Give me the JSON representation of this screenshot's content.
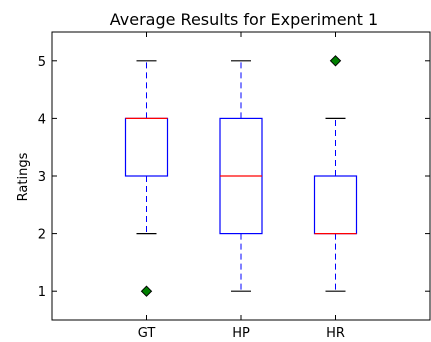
{
  "chart_data": {
    "type": "box",
    "title": "Average Results for Experiment 1",
    "xlabel": "",
    "ylabel": "Ratings",
    "ylim": [
      0.5,
      5.5
    ],
    "yticks": [
      1,
      2,
      3,
      4,
      5
    ],
    "ytick_labels": [
      "1",
      "2",
      "3",
      "4",
      "5"
    ],
    "categories": [
      "GT",
      "HP",
      "HR"
    ],
    "boxes": [
      {
        "category": "GT",
        "whisker_low": 2,
        "q1": 3,
        "median": 4,
        "q3": 4,
        "whisker_high": 5,
        "outliers": [
          1
        ]
      },
      {
        "category": "HP",
        "whisker_low": 1,
        "q1": 2,
        "median": 3,
        "q3": 4,
        "whisker_high": 5,
        "outliers": []
      },
      {
        "category": "HR",
        "whisker_low": 1,
        "q1": 2,
        "median": 2,
        "q3": 3,
        "whisker_high": 4,
        "outliers": [
          5
        ]
      }
    ],
    "grid": false,
    "colors": {
      "box": "#0000ff",
      "whisker": "#0000ff",
      "median": "#ff0000",
      "cap": "#000000",
      "outlier_fill": "#008000",
      "axis": "#000000"
    }
  }
}
